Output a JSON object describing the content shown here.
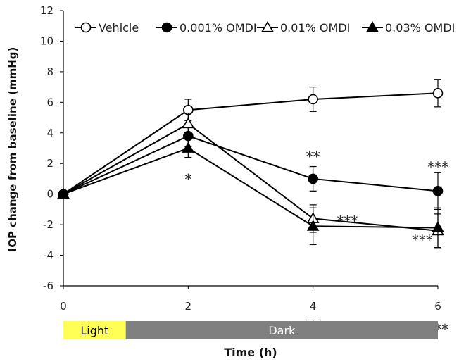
{
  "chart_data": {
    "type": "line",
    "title": "",
    "xlabel": "Time (h)",
    "ylabel": "IOP change from baseline (mmHg)",
    "xlim": [
      0,
      6
    ],
    "ylim": [
      -6,
      12
    ],
    "x_ticks": [
      0,
      2,
      4,
      6
    ],
    "y_ticks": [
      -6,
      -4,
      -2,
      0,
      2,
      4,
      6,
      8,
      10,
      12
    ],
    "grid": false,
    "legend_position": "top",
    "x": [
      0,
      2,
      4,
      6
    ],
    "series": [
      {
        "name": "Vehicle",
        "marker": "circle-open",
        "values": [
          0,
          5.5,
          6.2,
          6.6
        ],
        "errors": [
          0,
          0.7,
          0.8,
          0.9
        ]
      },
      {
        "name": "0.001% OMDI",
        "marker": "circle-filled",
        "values": [
          0,
          3.8,
          1.0,
          0.2
        ],
        "errors": [
          0,
          0.7,
          0.8,
          1.2
        ]
      },
      {
        "name": "0.01% OMDI",
        "marker": "triangle-open",
        "values": [
          0,
          4.6,
          -1.6,
          -2.4
        ],
        "errors": [
          0,
          0.7,
          0.9,
          1.1
        ]
      },
      {
        "name": "0.03% OMDI",
        "marker": "triangle-filled",
        "values": [
          0,
          3.0,
          -2.1,
          -2.2
        ],
        "errors": [
          0,
          0.6,
          1.2,
          1.3
        ]
      }
    ],
    "annotations": [
      {
        "text": "*",
        "x": 2,
        "y": 0.9
      },
      {
        "text": "**",
        "x": 4,
        "y": 2.4
      },
      {
        "text": "***",
        "x": 6,
        "y": 1.7
      },
      {
        "text": "***",
        "x": 4.55,
        "y": -1.8
      },
      {
        "text": "***",
        "x": 5.75,
        "y": -3.05
      },
      {
        "text": "***",
        "x": 4,
        "y": -8.7
      },
      {
        "text": "***",
        "x": 6,
        "y": -8.9
      }
    ],
    "phases": [
      {
        "label": "Light",
        "start": 0,
        "end": 1,
        "color": "#ffff55"
      },
      {
        "label": "Dark",
        "start": 1,
        "end": 6,
        "color": "#808080"
      }
    ],
    "colors": {
      "line": "#000000",
      "light_text": "#000000",
      "dark_text": "#ffffff"
    }
  }
}
